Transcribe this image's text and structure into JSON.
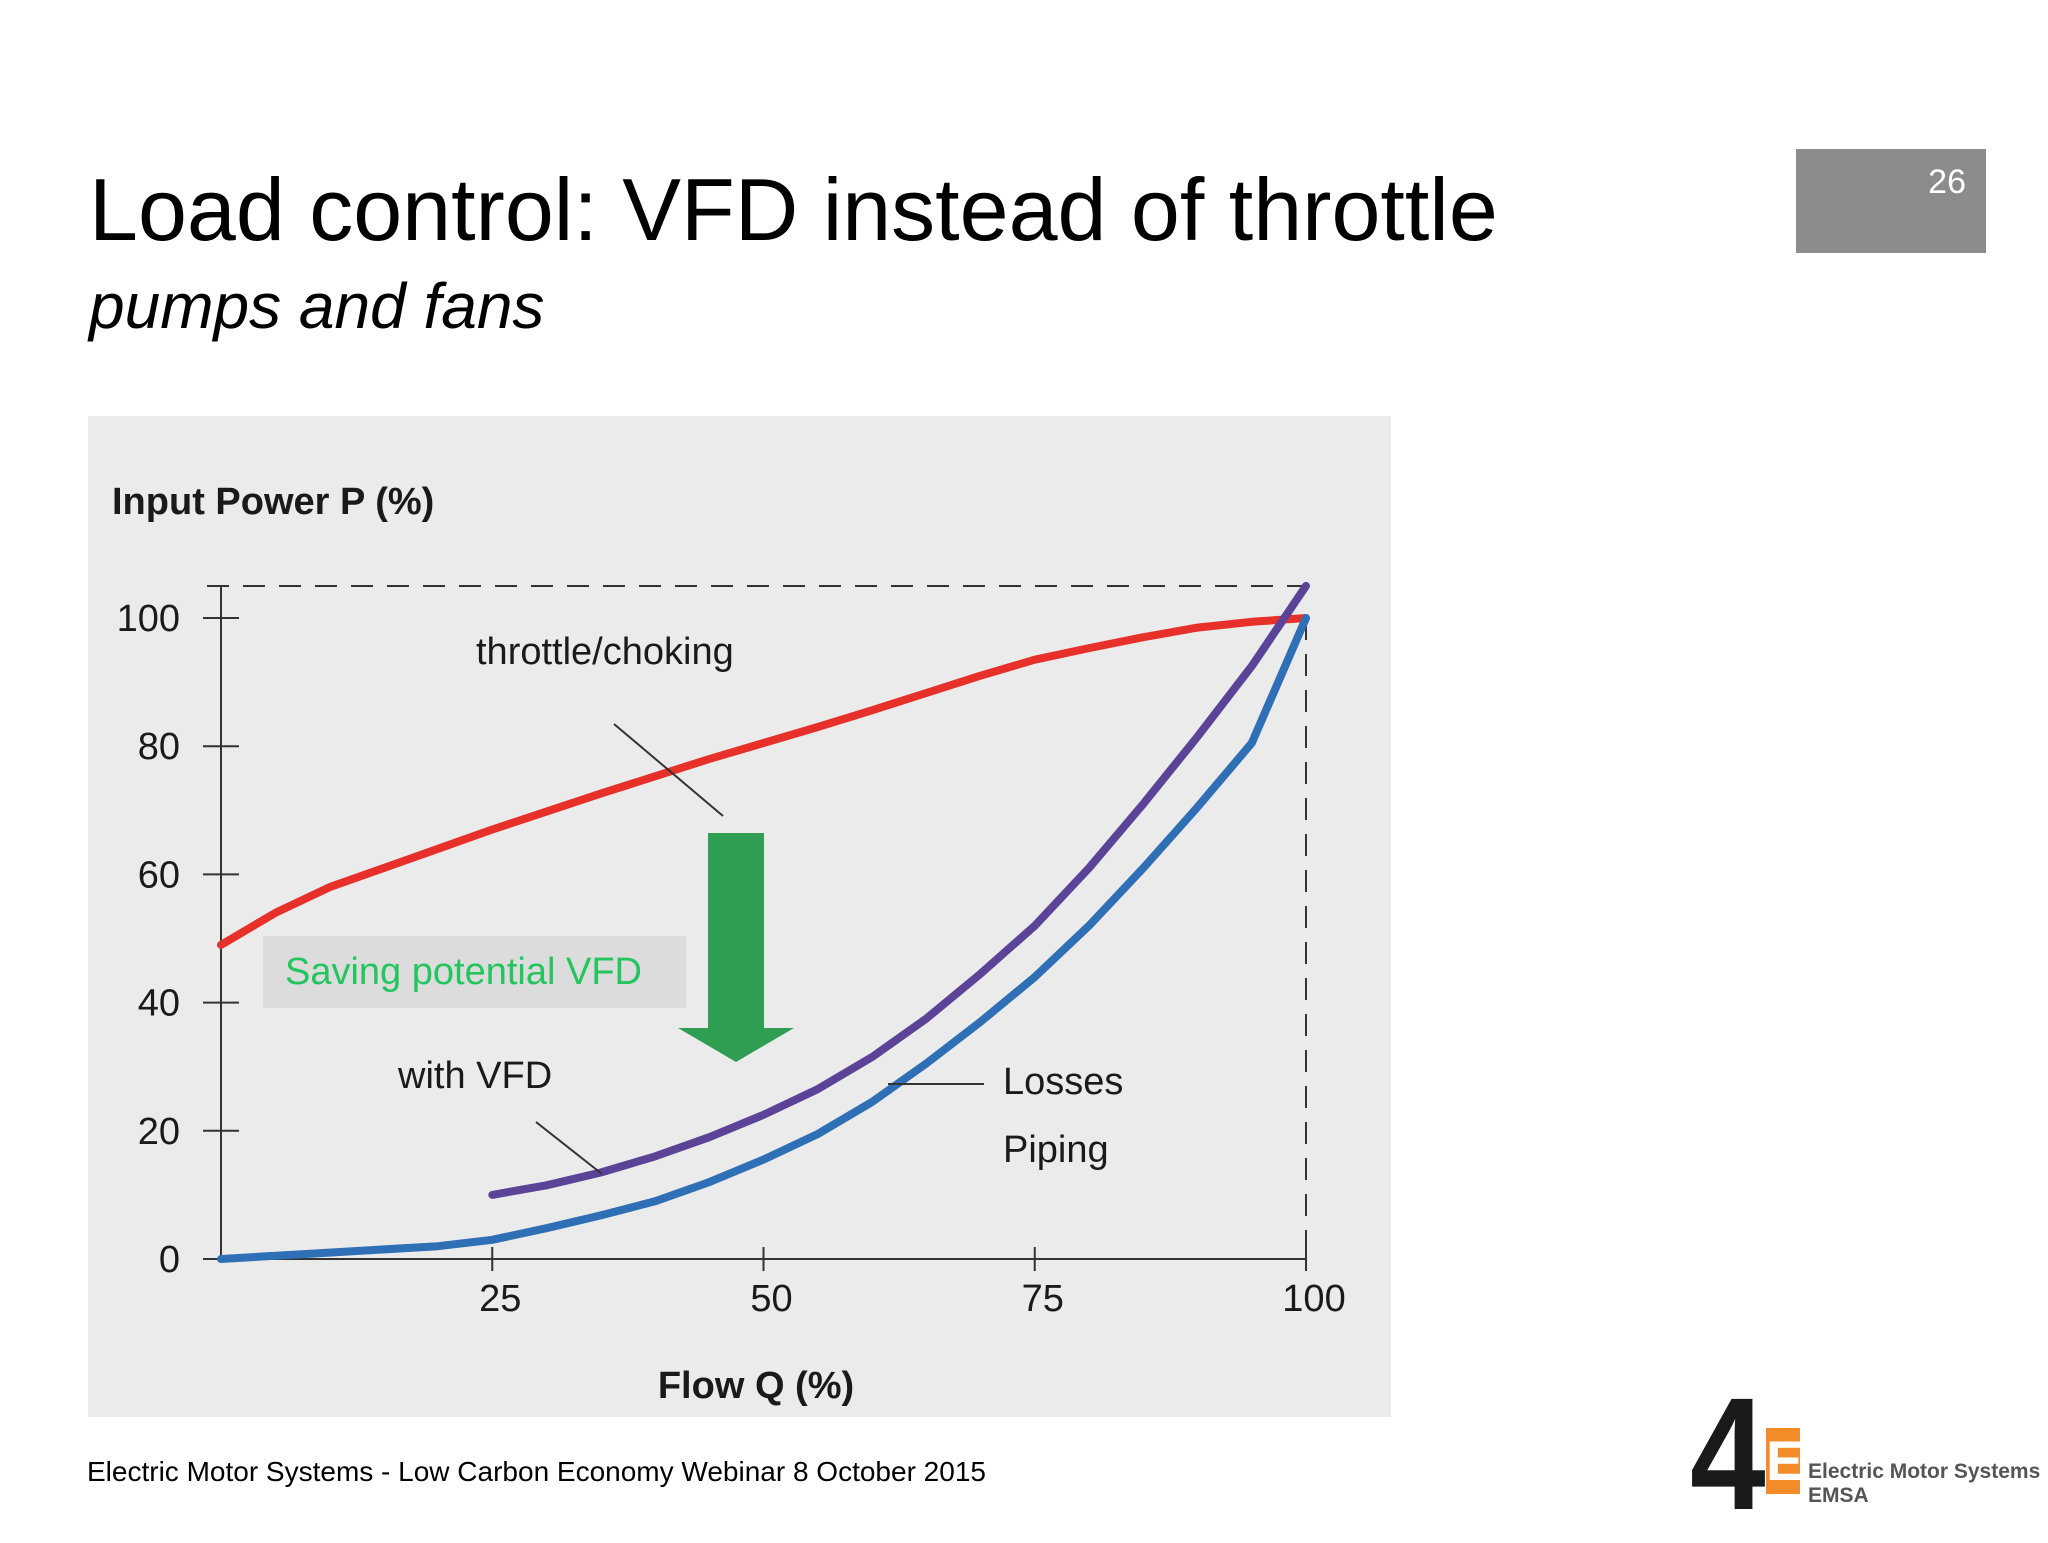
{
  "slide": {
    "title": "Load control: VFD instead of throttle",
    "subtitle": "pumps and fans",
    "slide_number": "26",
    "footer": "Electric Motor Systems - Low Carbon Economy Webinar 8 October 2015",
    "logo": {
      "mark": "4",
      "mark_e": "E",
      "line1": "Electric Motor Systems",
      "line2": "EMSA"
    },
    "saving_label": "Saving potential VFD"
  },
  "chart_data": {
    "type": "line",
    "title": "",
    "xlabel": "Flow Q (%)",
    "ylabel": "Input Power P (%)",
    "xlim": [
      0,
      100
    ],
    "ylim": [
      0,
      100
    ],
    "x_ticks": [
      25,
      50,
      75,
      100
    ],
    "y_ticks": [
      0,
      20,
      40,
      60,
      80,
      100
    ],
    "grid": false,
    "reference_box": {
      "x_max": 100,
      "y_max": 105
    },
    "series": [
      {
        "name": "throttle/choking",
        "color": "#e8302a",
        "x": [
          0,
          5,
          10,
          15,
          20,
          25,
          30,
          35,
          40,
          45,
          50,
          55,
          60,
          65,
          70,
          75,
          80,
          85,
          90,
          95,
          100
        ],
        "y": [
          49,
          54,
          58,
          61,
          64,
          67,
          69.8,
          72.6,
          75.3,
          78,
          80.5,
          83,
          85.6,
          88.3,
          91,
          93.5,
          95.3,
          97,
          98.5,
          99.4,
          100
        ]
      },
      {
        "name": "with VFD",
        "color": "#5b4398",
        "x": [
          25,
          30,
          35,
          40,
          45,
          50,
          55,
          60,
          65,
          70,
          75,
          80,
          85,
          90,
          95,
          100
        ],
        "y": [
          10,
          11.5,
          13.5,
          16,
          19,
          22.5,
          26.5,
          31.5,
          37.5,
          44.5,
          52,
          61,
          71,
          81.5,
          92.5,
          105
        ]
      },
      {
        "name": "Losses Piping",
        "color": "#2f6fb6",
        "x": [
          0,
          10,
          20,
          25,
          30,
          35,
          40,
          45,
          50,
          55,
          60,
          65,
          70,
          75,
          80,
          85,
          90,
          95,
          100
        ],
        "y": [
          0,
          1,
          2,
          3,
          4.8,
          6.8,
          9,
          12,
          15.5,
          19.5,
          24.5,
          30.5,
          37,
          44,
          52,
          61,
          70.5,
          80.5,
          100
        ]
      }
    ]
  }
}
